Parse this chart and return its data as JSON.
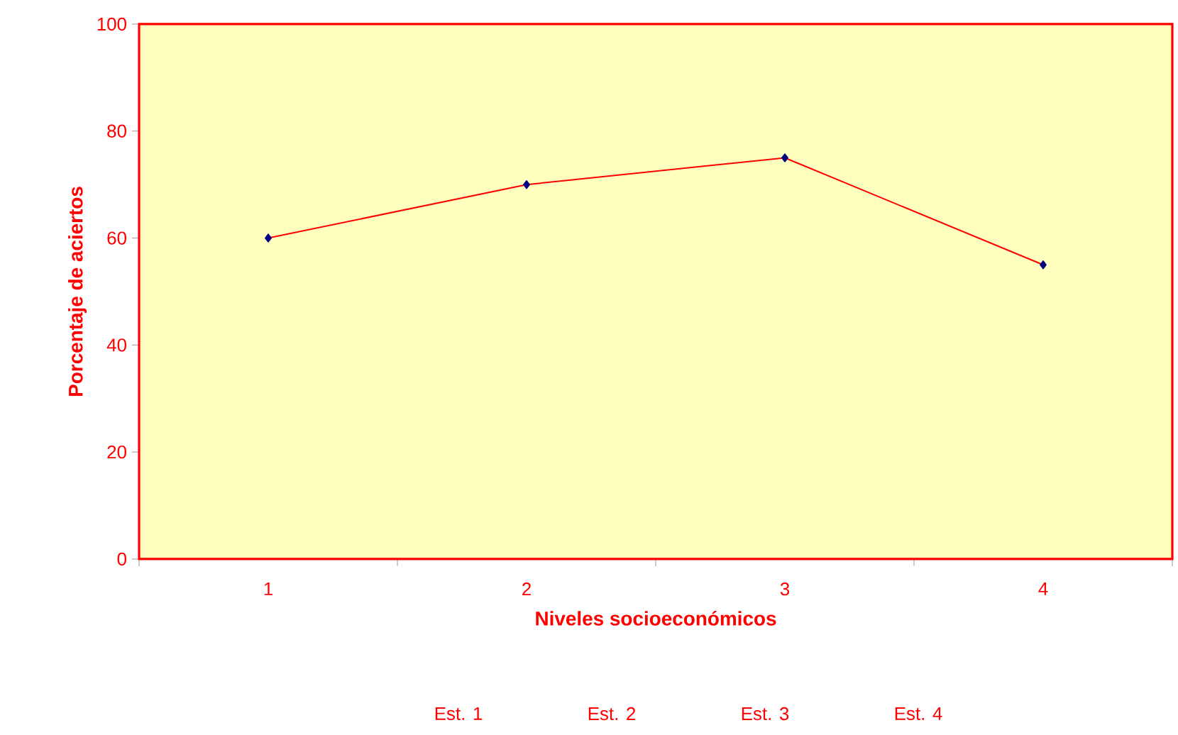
{
  "chart_data": {
    "type": "line",
    "xlabel": "Niveles socioeconómicos",
    "ylabel": "Porcentaje de aciertos",
    "categories": [
      "1",
      "2",
      "3",
      "4"
    ],
    "values": [
      60,
      70,
      75,
      55
    ],
    "color": "#ff0000",
    "marker": "diamond",
    "ylim": [
      0,
      100
    ],
    "yticks": [
      0,
      20,
      40,
      60,
      80,
      100
    ],
    "annotations": [
      "Est. 1",
      "Est. 2",
      "Est. 3",
      "Est. 4"
    ]
  }
}
